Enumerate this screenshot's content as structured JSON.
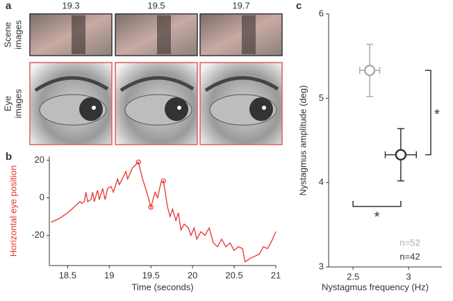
{
  "panel_labels": [
    "a",
    "b",
    "c"
  ],
  "panel_a": {
    "times": [
      "19.3",
      "19.5",
      "19.7"
    ],
    "rows": [
      [
        "Scene",
        "images"
      ],
      [
        "Eye",
        "images"
      ]
    ]
  },
  "chart_data": [
    {
      "type": "line",
      "x_label": "Time (seconds)",
      "y_label": "Horizontal eye position",
      "xlim": [
        18.28,
        21
      ],
      "ylim": [
        -36,
        22
      ],
      "xticks": [
        18.5,
        19,
        19.5,
        20,
        20.5,
        21
      ],
      "yticks": [
        -20,
        0,
        20
      ],
      "color": "#e8312f",
      "x": [
        18.3,
        18.4,
        18.5,
        18.6,
        18.65,
        18.67,
        18.7,
        18.72,
        18.74,
        18.78,
        18.8,
        18.82,
        18.86,
        18.88,
        18.92,
        18.95,
        18.98,
        19.02,
        19.05,
        19.1,
        19.12,
        19.2,
        19.22,
        19.28,
        19.35,
        19.4,
        19.45,
        19.5,
        19.55,
        19.58,
        19.62,
        19.65,
        19.7,
        19.73,
        19.76,
        19.8,
        19.83,
        19.86,
        19.9,
        19.95,
        19.98,
        20.02,
        20.05,
        20.1,
        20.15,
        20.2,
        20.25,
        20.3,
        20.35,
        20.4,
        20.45,
        20.5,
        20.55,
        20.6,
        20.63,
        20.7,
        20.8,
        20.85,
        20.9,
        20.95,
        21.0
      ],
      "values": [
        -13,
        -11,
        -8,
        -4,
        -2,
        -3,
        -2,
        3,
        -2,
        -1,
        3,
        -2,
        4,
        -1,
        5,
        -1,
        5,
        6,
        3,
        10,
        7,
        14,
        10,
        16,
        19,
        10,
        3,
        -5,
        3,
        0,
        8,
        9,
        -5,
        -10,
        -6,
        -12,
        -8,
        -17,
        -14,
        -16,
        -20,
        -16,
        -22,
        -18,
        -20,
        -16,
        -24,
        -26,
        -22,
        -26,
        -24,
        -28,
        -26,
        -27,
        -34,
        -32,
        -30,
        -26,
        -27,
        -23,
        -18
      ],
      "highlights": {
        "x": [
          19.35,
          19.5,
          19.65
        ],
        "values": [
          19,
          -5,
          9
        ]
      }
    },
    {
      "type": "scatter",
      "x_label": "Nystagmus frequency (Hz)",
      "y_label": "Nystagmus amplitude (deg)",
      "xlim": [
        2.28,
        3.3
      ],
      "ylim": [
        3,
        6
      ],
      "xticks": [
        2.5,
        3
      ],
      "yticks": [
        3,
        4,
        5,
        6
      ],
      "series": [
        {
          "name": "n=52",
          "color": "#aaaaaa",
          "x": [
            2.65
          ],
          "values": [
            5.33
          ],
          "x_error": [
            0.09
          ],
          "y_error": [
            0.31
          ]
        },
        {
          "name": "n=42",
          "color": "#333333",
          "x": [
            2.93
          ],
          "values": [
            4.33
          ],
          "x_error": [
            0.14
          ],
          "y_error": [
            0.31
          ]
        }
      ],
      "annotations": [
        "*",
        "*"
      ]
    }
  ]
}
